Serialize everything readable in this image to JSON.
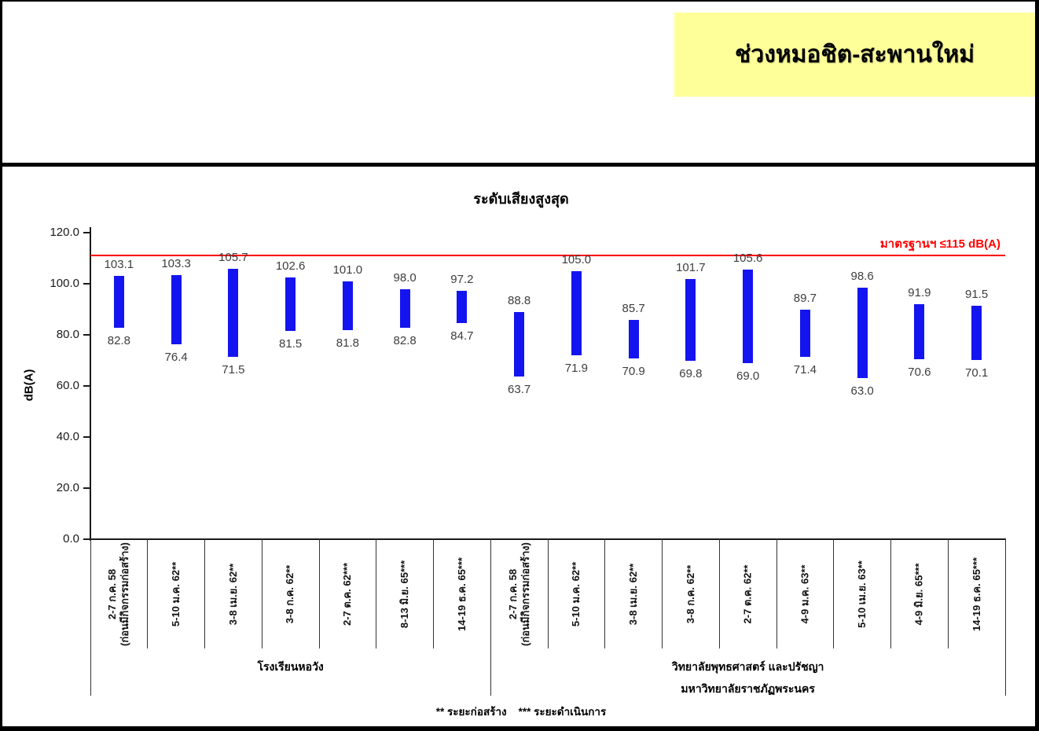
{
  "header": {
    "title": "ช่วงหมอชิต-สะพานใหม่",
    "box_color": "#FFFF99"
  },
  "chart_data": {
    "type": "floating-bar-range",
    "title": "ระดับเสียงสูงสุด",
    "ylabel": "dB(A)",
    "ylim": [
      0,
      120
    ],
    "ytick_values": [
      0,
      20,
      40,
      60,
      80,
      100,
      120
    ],
    "grid": "off",
    "bar_color": "#1414F0",
    "standard_line": {
      "label": "มาตรฐานฯ ≤115 dB(A)",
      "threshold": 115,
      "drawn_at": 111,
      "color": "#FF0000"
    },
    "groups": [
      {
        "label_lines": [
          "โรงเรียนหอวัง"
        ],
        "bars": [
          {
            "period_lines": [
              "2-7 ก.ค. 58",
              "(ก่อนมีกิจกรรมก่อสร้าง)"
            ],
            "min": 82.8,
            "max": 103.1
          },
          {
            "period_lines": [
              "5-10 ม.ค. 62**"
            ],
            "min": 76.4,
            "max": 103.3
          },
          {
            "period_lines": [
              "3-8 เม.ย. 62**"
            ],
            "min": 71.5,
            "max": 105.7
          },
          {
            "period_lines": [
              "3-8 ก.ค. 62**"
            ],
            "min": 81.5,
            "max": 102.6
          },
          {
            "period_lines": [
              "2-7 ต.ค. 62***"
            ],
            "min": 81.8,
            "max": 101.0
          },
          {
            "period_lines": [
              "8-13 มิ.ย. 65***"
            ],
            "min": 82.8,
            "max": 98.0
          },
          {
            "period_lines": [
              "14-19 ธ.ค. 65***"
            ],
            "min": 84.7,
            "max": 97.2
          }
        ]
      },
      {
        "label_lines": [
          "วิทยาลัยพุทธศาสตร์ และปรัชญา",
          "มหาวิทยาลัยราชภัฏพระนคร"
        ],
        "bars": [
          {
            "period_lines": [
              "2-7 ก.ค. 58",
              "(ก่อนมีกิจกรรมก่อสร้าง)"
            ],
            "min": 63.7,
            "max": 88.8
          },
          {
            "period_lines": [
              "5-10 ม.ค. 62**"
            ],
            "min": 71.9,
            "max": 105.0
          },
          {
            "period_lines": [
              "3-8 เม.ย. 62**"
            ],
            "min": 70.9,
            "max": 85.7
          },
          {
            "period_lines": [
              "3-8 ก.ค. 62**"
            ],
            "min": 69.8,
            "max": 101.7
          },
          {
            "period_lines": [
              "2-7 ต.ค. 62**"
            ],
            "min": 69.0,
            "max": 105.6
          },
          {
            "period_lines": [
              "4-9 ม.ค. 63**"
            ],
            "min": 71.4,
            "max": 89.7
          },
          {
            "period_lines": [
              "5-10 เม.ย. 63**"
            ],
            "min": 63.0,
            "max": 98.6
          },
          {
            "period_lines": [
              "4-9 มิ.ย. 65***"
            ],
            "min": 70.6,
            "max": 91.9
          },
          {
            "period_lines": [
              "14-19 ธ.ค. 65***"
            ],
            "min": 70.1,
            "max": 91.5
          }
        ]
      }
    ],
    "footnote": "** ระยะก่อสร้าง    *** ระยะดำเนินการ"
  }
}
